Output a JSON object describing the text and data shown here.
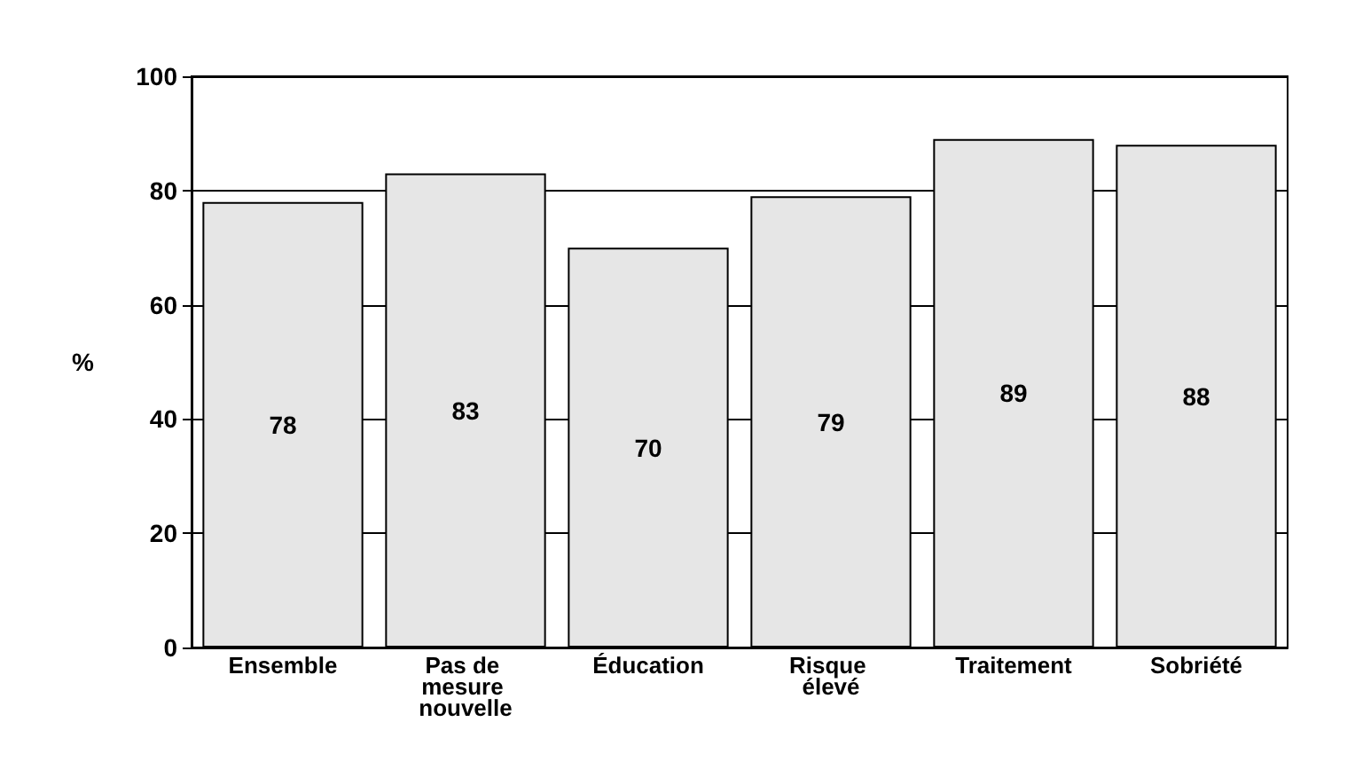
{
  "chart_data": {
    "type": "bar",
    "ylabel": "%",
    "categories": [
      "Ensemble",
      "Pas de mesure nouvelle",
      "Éducation",
      "Risque élevé",
      "Traitement",
      "Sobriété"
    ],
    "values": [
      78,
      83,
      70,
      79,
      89,
      88
    ],
    "color": "#e6e6e6",
    "ylim": [
      0,
      100
    ],
    "yticks": [
      0,
      20,
      40,
      60,
      80,
      100
    ],
    "grid": "y",
    "data_labels": true
  }
}
